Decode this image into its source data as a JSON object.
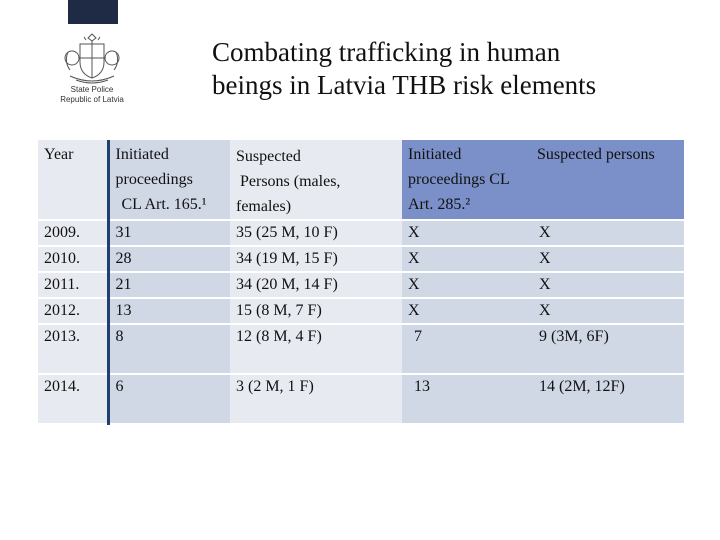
{
  "header": {
    "logo_line1": "State Police",
    "logo_line2": "Republic of Latvia",
    "title_line1": "Combating trafficking in human",
    "title_line2": "beings in Latvia THB risk elements"
  },
  "table": {
    "headers": {
      "year": "Year",
      "init_line1": "Initiated",
      "init_line2": "proceedings",
      "init_line3": "CL Art. 165.¹",
      "susp_line1": "Suspected",
      "susp_line2": "Persons (males,",
      "susp_line3": "females)",
      "init285_line1": "Initiated",
      "init285_line2": "proceedings CL",
      "init285_line3": "Art. 285.²",
      "susp285": "Suspected persons"
    },
    "rows": [
      {
        "year": "2009.",
        "init": "31",
        "susp": "35 (25 M, 10  F)",
        "init285": "X",
        "susp285": "X"
      },
      {
        "year": "2010.",
        "init": "28",
        "susp": "34 (19 M, 15 F)",
        "init285": "X",
        "susp285": "X"
      },
      {
        "year": "2011.",
        "init": "21",
        "susp": "34 (20 M, 14 F)",
        "init285": "X",
        "susp285": "X"
      },
      {
        "year": "2012.",
        "init": "13",
        "susp": "15 (8 M, 7 F)",
        "init285": "X",
        "susp285": "X"
      },
      {
        "year": "2013.",
        "init": "8",
        "susp": "12 (8 M, 4 F)",
        "init285": "7",
        "susp285": "9 (3M, 6F)"
      },
      {
        "year": "2014.",
        "init": "6",
        "susp": "3 (2 M, 1 F)",
        "init285": "13",
        "susp285": "14 (2M, 12F)"
      }
    ]
  }
}
